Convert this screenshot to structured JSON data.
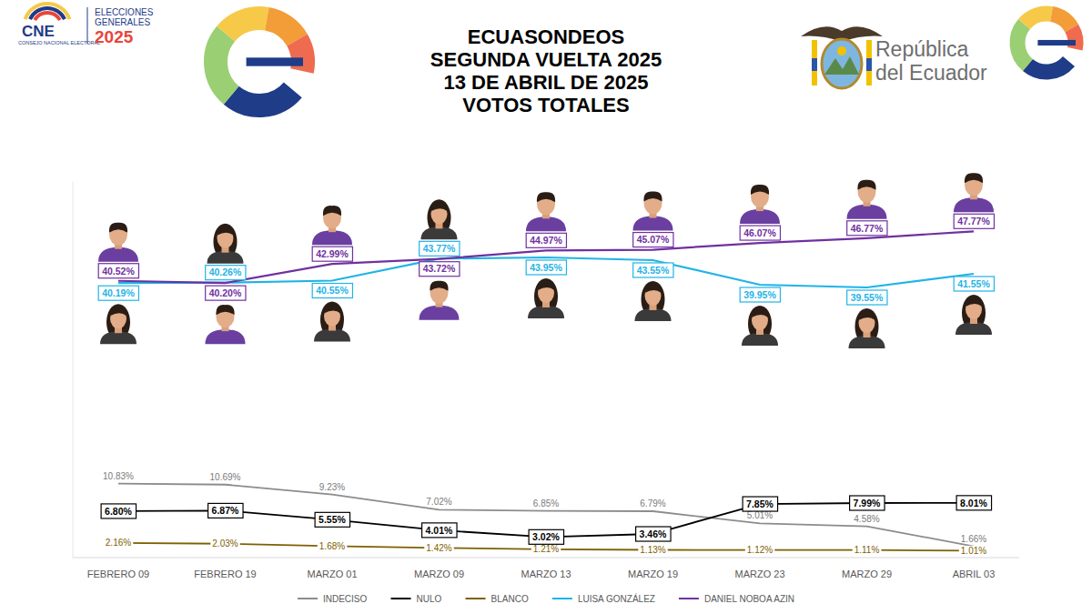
{
  "logos": {
    "cne": "CNE",
    "cne_name": "CONSEJO NACIONAL ELECTORAL",
    "elecciones": [
      "ELECCIONES",
      "GENERALES",
      "2025"
    ],
    "republica": [
      "República",
      "del Ecuador"
    ]
  },
  "chart_data": {
    "type": "line",
    "title": "ECUASONDEOS",
    "subtitle": [
      "SEGUNDA VUELTA 2025",
      "13 DE ABRIL DE 2025",
      "VOTOS TOTALES"
    ],
    "categories": [
      "FEBRERO 09",
      "FEBRERO 19",
      "MARZO 01",
      "MARZO 09",
      "MARZO 13",
      "MARZO 19",
      "MARZO 23",
      "MARZO 29",
      "ABRIL 03"
    ],
    "ylim": [
      0,
      55
    ],
    "yticks": [],
    "tick_labels": "x",
    "grid": false,
    "legend": "bottom",
    "data_labels": true,
    "series": [
      {
        "name": "INDECISO",
        "color": "#8c8c8c",
        "values": [
          10.83,
          10.69,
          9.23,
          7.02,
          6.85,
          6.79,
          5.01,
          4.58,
          1.66
        ],
        "value_labels": [
          "10.83%",
          "10.69%",
          "9.23%",
          "7.02%",
          "6.85%",
          "6.79%",
          "5.01%",
          "4.58%",
          "1.66%"
        ]
      },
      {
        "name": "NULO",
        "color": "#000000",
        "values": [
          6.8,
          6.87,
          5.55,
          4.01,
          3.02,
          3.46,
          7.85,
          7.99,
          8.01
        ],
        "value_labels": [
          "6.80%",
          "6.87%",
          "5.55%",
          "4.01%",
          "3.02%",
          "3.46%",
          "7.85%",
          "7.99%",
          "8.01%"
        ]
      },
      {
        "name": "BLANCO",
        "color": "#7f6000",
        "values": [
          2.16,
          2.03,
          1.68,
          1.42,
          1.21,
          1.13,
          1.12,
          1.11,
          1.01
        ],
        "value_labels": [
          "2.16%",
          "2.03%",
          "1.68%",
          "1.42%",
          "1.21%",
          "1.13%",
          "1.12%",
          "1.11%",
          "1.01%"
        ]
      },
      {
        "name": "LUISA GONZÁLEZ",
        "color": "#1fb4e6",
        "values": [
          40.19,
          40.26,
          40.55,
          43.77,
          43.95,
          43.55,
          39.95,
          39.55,
          41.55
        ],
        "value_labels": [
          "40.19%",
          "40.26%",
          "40.55%",
          "43.77%",
          "43.95%",
          "43.55%",
          "39.95%",
          "39.55%",
          "41.55%"
        ]
      },
      {
        "name": "DANIEL NOBOA AZIN",
        "color": "#7030a0",
        "values": [
          40.52,
          40.2,
          42.99,
          43.72,
          44.97,
          45.07,
          46.07,
          46.77,
          47.77
        ],
        "value_labels": [
          "40.52%",
          "40.20%",
          "42.99%",
          "43.72%",
          "44.97%",
          "45.07%",
          "46.07%",
          "46.77%",
          "47.77%"
        ]
      }
    ]
  }
}
